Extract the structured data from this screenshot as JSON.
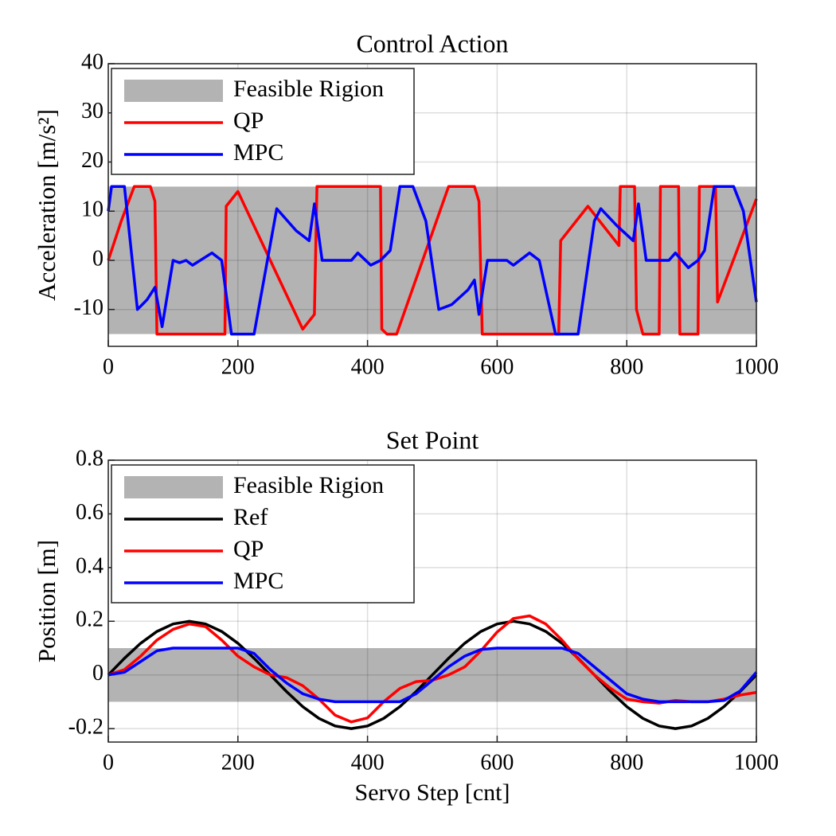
{
  "chart_data": [
    {
      "type": "line",
      "title": "Control Action",
      "ylabel": "Acceleration [m/s²]",
      "xlim": [
        0,
        1000
      ],
      "xticks": [
        0,
        200,
        400,
        600,
        800,
        1000
      ],
      "ylim": [
        -17.5,
        40
      ],
      "yticks": [
        -10,
        0,
        10,
        20,
        30,
        40
      ],
      "grid": true,
      "legend": "upper left",
      "feasible_region": {
        "name": "Feasible Rigion",
        "lower": -15,
        "upper": 15,
        "color": "#b3b3b3"
      },
      "series": [
        {
          "name": "QP",
          "color": "#ff0000",
          "x": [
            0,
            20,
            40,
            65,
            72,
            75,
            180,
            182,
            200,
            250,
            300,
            318,
            322,
            420,
            422,
            430,
            445,
            485,
            525,
            565,
            572,
            577,
            695,
            698,
            740,
            788,
            790,
            812,
            815,
            825,
            850,
            852,
            880,
            882,
            910,
            912,
            937,
            940,
            970,
            1000
          ],
          "values": [
            0,
            8,
            15,
            15,
            12,
            -15,
            -15,
            11,
            14,
            0,
            -14,
            -11,
            15,
            15,
            -14,
            -15,
            -15,
            0,
            15,
            15,
            12,
            -15,
            -15,
            4,
            11,
            3,
            15,
            15,
            -10,
            -15,
            -15,
            15,
            15,
            -15,
            -15,
            15,
            15,
            -8.5,
            2,
            12.5
          ]
        },
        {
          "name": "MPC",
          "color": "#0000ff",
          "x": [
            0,
            5,
            25,
            45,
            60,
            72,
            83,
            100,
            110,
            120,
            130,
            160,
            175,
            190,
            225,
            260,
            290,
            310,
            318,
            330,
            375,
            385,
            405,
            420,
            435,
            450,
            470,
            490,
            510,
            530,
            555,
            565,
            572,
            585,
            615,
            625,
            650,
            665,
            690,
            725,
            750,
            760,
            785,
            810,
            818,
            830,
            865,
            875,
            895,
            910,
            920,
            935,
            965,
            980,
            1000
          ],
          "values": [
            10,
            15,
            15,
            -10,
            -8,
            -5.5,
            -13.5,
            0,
            -0.5,
            0,
            -1,
            1.5,
            0,
            -15,
            -15,
            10.5,
            6,
            4,
            11.5,
            0,
            0,
            1.5,
            -1,
            0,
            2,
            15,
            15,
            8,
            -10,
            -9,
            -6,
            -4,
            -11,
            0,
            0,
            -1,
            1.5,
            0,
            -15,
            -15,
            8,
            10.5,
            7,
            4,
            11.5,
            0,
            0,
            1.5,
            -1.5,
            0,
            2,
            15,
            15,
            10,
            -8.5
          ]
        }
      ]
    },
    {
      "type": "line",
      "title": "Set Point",
      "xlabel": "Servo Step [cnt]",
      "ylabel": "Position [m]",
      "xlim": [
        0,
        1000
      ],
      "xticks": [
        0,
        200,
        400,
        600,
        800,
        1000
      ],
      "ylim": [
        -0.25,
        0.8
      ],
      "yticks": [
        -0.2,
        0,
        0.2,
        0.4,
        0.6,
        0.8
      ],
      "grid": true,
      "legend": "upper left",
      "feasible_region": {
        "name": "Feasible Rigion",
        "lower": -0.1,
        "upper": 0.1,
        "color": "#b3b3b3"
      },
      "series": [
        {
          "name": "Ref",
          "color": "#000000",
          "x": [
            0,
            25,
            50,
            75,
            100,
            125,
            150,
            175,
            200,
            225,
            250,
            275,
            300,
            325,
            350,
            375,
            400,
            425,
            450,
            475,
            500,
            525,
            550,
            575,
            600,
            625,
            650,
            675,
            700,
            725,
            750,
            775,
            800,
            825,
            850,
            875,
            900,
            925,
            950,
            975,
            1000
          ],
          "values": [
            0,
            0.062,
            0.118,
            0.162,
            0.19,
            0.2,
            0.19,
            0.162,
            0.118,
            0.062,
            0,
            -0.062,
            -0.118,
            -0.162,
            -0.19,
            -0.2,
            -0.19,
            -0.162,
            -0.118,
            -0.062,
            0,
            0.062,
            0.118,
            0.162,
            0.19,
            0.2,
            0.19,
            0.162,
            0.118,
            0.062,
            0,
            -0.062,
            -0.118,
            -0.162,
            -0.19,
            -0.2,
            -0.19,
            -0.162,
            -0.118,
            -0.062,
            0
          ]
        },
        {
          "name": "QP",
          "color": "#ff0000",
          "x": [
            0,
            25,
            50,
            75,
            100,
            125,
            150,
            175,
            200,
            225,
            250,
            275,
            300,
            325,
            350,
            375,
            400,
            425,
            450,
            475,
            500,
            525,
            550,
            575,
            600,
            625,
            650,
            675,
            700,
            725,
            750,
            775,
            800,
            825,
            850,
            875,
            900,
            925,
            950,
            975,
            1000
          ],
          "values": [
            0,
            0.02,
            0.07,
            0.13,
            0.17,
            0.19,
            0.18,
            0.13,
            0.07,
            0.03,
            0,
            -0.01,
            -0.04,
            -0.09,
            -0.15,
            -0.175,
            -0.16,
            -0.1,
            -0.05,
            -0.025,
            -0.02,
            0,
            0.03,
            0.09,
            0.16,
            0.21,
            0.22,
            0.19,
            0.13,
            0.06,
            0,
            -0.05,
            -0.09,
            -0.1,
            -0.105,
            -0.095,
            -0.1,
            -0.1,
            -0.09,
            -0.075,
            -0.065
          ]
        },
        {
          "name": "MPC",
          "color": "#0000ff",
          "x": [
            0,
            25,
            50,
            75,
            100,
            125,
            150,
            175,
            200,
            225,
            250,
            275,
            300,
            325,
            350,
            375,
            400,
            425,
            450,
            475,
            500,
            525,
            550,
            575,
            600,
            625,
            650,
            675,
            700,
            725,
            750,
            775,
            800,
            825,
            850,
            875,
            900,
            925,
            950,
            975,
            1000
          ],
          "values": [
            0,
            0.01,
            0.05,
            0.09,
            0.1,
            0.1,
            0.1,
            0.1,
            0.1,
            0.08,
            0.02,
            -0.03,
            -0.07,
            -0.09,
            -0.1,
            -0.1,
            -0.1,
            -0.1,
            -0.1,
            -0.07,
            -0.02,
            0.03,
            0.07,
            0.095,
            0.1,
            0.1,
            0.1,
            0.1,
            0.1,
            0.08,
            0.03,
            -0.02,
            -0.07,
            -0.09,
            -0.1,
            -0.1,
            -0.1,
            -0.1,
            -0.095,
            -0.06,
            0.01
          ]
        }
      ]
    }
  ]
}
